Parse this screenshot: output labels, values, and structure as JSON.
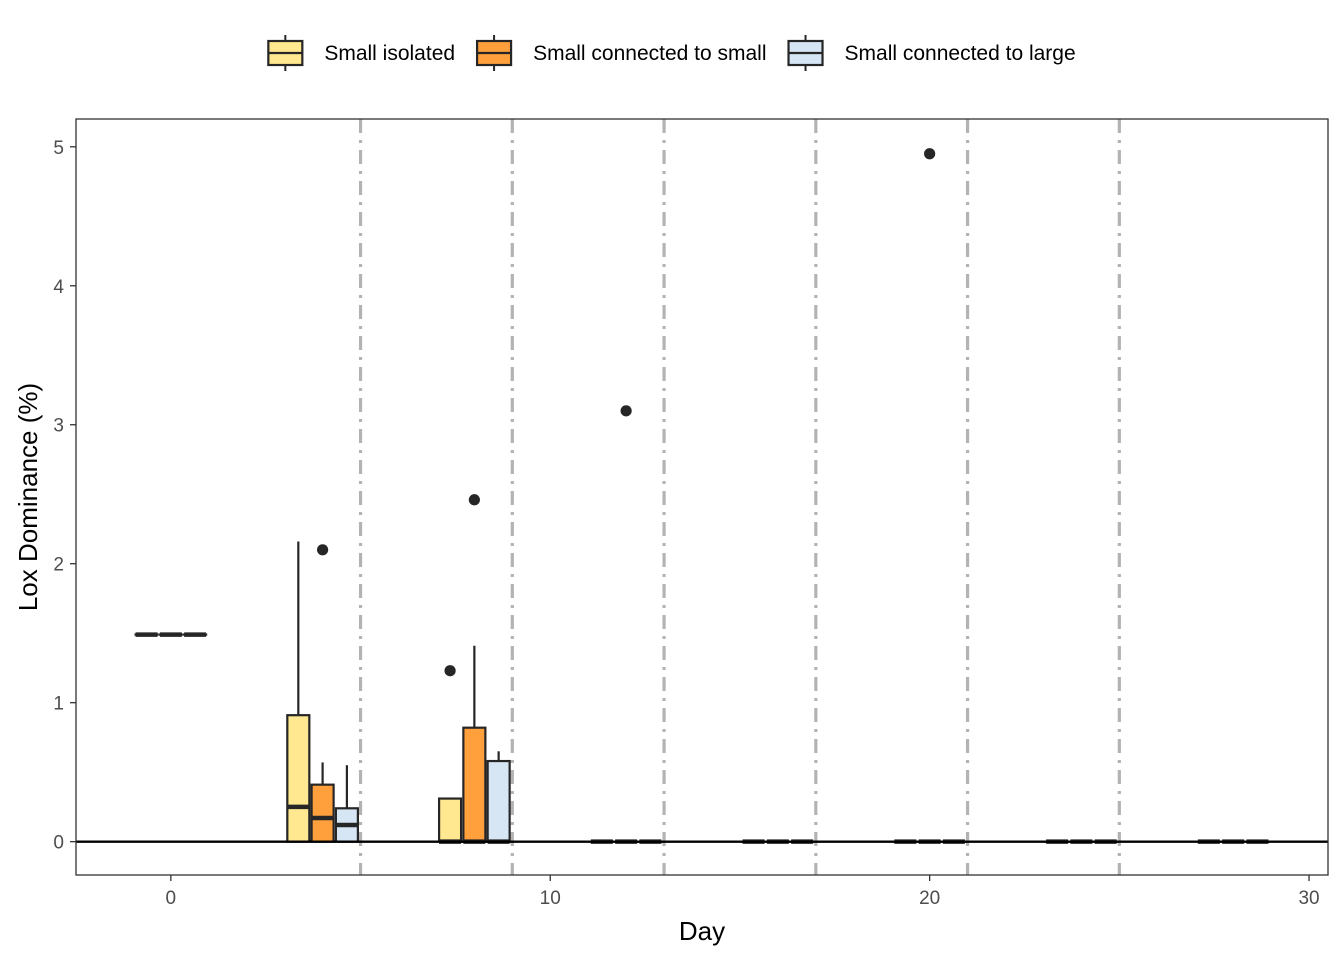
{
  "chart_data": {
    "type": "boxplot",
    "xlabel": "Day",
    "ylabel": "Lox Dominance (%)",
    "xlim": [
      -2.5,
      30.5
    ],
    "ylim": [
      -0.24,
      5.2
    ],
    "x_ticks": [
      0,
      10,
      20,
      30
    ],
    "y_ticks": [
      0,
      1,
      2,
      3,
      4,
      5
    ],
    "grid": false,
    "legend_position": "top",
    "hline_y": 0,
    "vlines_x": [
      5,
      9,
      13,
      17,
      21,
      25
    ],
    "series": [
      {
        "name": "Small isolated",
        "color": "#FFE88F",
        "boxes": [
          {
            "x": -0.64,
            "lower": 1.49,
            "q1": 1.49,
            "median": 1.49,
            "q3": 1.49,
            "upper": 1.49,
            "outliers": []
          },
          {
            "x": 3.36,
            "lower": 0,
            "q1": 0,
            "median": 0.25,
            "q3": 0.91,
            "upper": 2.16,
            "outliers": []
          },
          {
            "x": 7.36,
            "lower": 0,
            "q1": 0,
            "median": 0,
            "q3": 0.31,
            "upper": 0.31,
            "outliers": [
              1.23
            ]
          },
          {
            "x": 11.36,
            "lower": 0,
            "q1": 0,
            "median": 0,
            "q3": 0,
            "upper": 0,
            "outliers": []
          },
          {
            "x": 15.36,
            "lower": 0,
            "q1": 0,
            "median": 0,
            "q3": 0,
            "upper": 0,
            "outliers": []
          },
          {
            "x": 19.36,
            "lower": 0,
            "q1": 0,
            "median": 0,
            "q3": 0,
            "upper": 0,
            "outliers": []
          },
          {
            "x": 23.36,
            "lower": 0,
            "q1": 0,
            "median": 0,
            "q3": 0,
            "upper": 0,
            "outliers": []
          },
          {
            "x": 27.36,
            "lower": 0,
            "q1": 0,
            "median": 0,
            "q3": 0,
            "upper": 0,
            "outliers": []
          }
        ]
      },
      {
        "name": "Small connected to small",
        "color": "#FFA03C",
        "boxes": [
          {
            "x": 0,
            "lower": 1.49,
            "q1": 1.49,
            "median": 1.49,
            "q3": 1.49,
            "upper": 1.49,
            "outliers": []
          },
          {
            "x": 4,
            "lower": 0,
            "q1": 0,
            "median": 0.17,
            "q3": 0.41,
            "upper": 0.57,
            "outliers": [
              2.1
            ]
          },
          {
            "x": 8,
            "lower": 0,
            "q1": 0,
            "median": 0,
            "q3": 0.82,
            "upper": 1.41,
            "outliers": [
              2.46
            ]
          },
          {
            "x": 12,
            "lower": 0,
            "q1": 0,
            "median": 0,
            "q3": 0,
            "upper": 0,
            "outliers": [
              3.1
            ]
          },
          {
            "x": 16,
            "lower": 0,
            "q1": 0,
            "median": 0,
            "q3": 0,
            "upper": 0,
            "outliers": []
          },
          {
            "x": 20,
            "lower": 0,
            "q1": 0,
            "median": 0,
            "q3": 0,
            "upper": 0,
            "outliers": [
              4.95
            ]
          },
          {
            "x": 24,
            "lower": 0,
            "q1": 0,
            "median": 0,
            "q3": 0,
            "upper": 0,
            "outliers": []
          },
          {
            "x": 28,
            "lower": 0,
            "q1": 0,
            "median": 0,
            "q3": 0,
            "upper": 0,
            "outliers": []
          }
        ]
      },
      {
        "name": "Small connected to large",
        "color": "#D6E6F5",
        "boxes": [
          {
            "x": 0.64,
            "lower": 1.49,
            "q1": 1.49,
            "median": 1.49,
            "q3": 1.49,
            "upper": 1.49,
            "outliers": []
          },
          {
            "x": 4.64,
            "lower": 0,
            "q1": 0,
            "median": 0.12,
            "q3": 0.24,
            "upper": 0.55,
            "outliers": []
          },
          {
            "x": 8.64,
            "lower": 0,
            "q1": 0,
            "median": 0,
            "q3": 0.58,
            "upper": 0.65,
            "outliers": []
          },
          {
            "x": 12.64,
            "lower": 0,
            "q1": 0,
            "median": 0,
            "q3": 0,
            "upper": 0,
            "outliers": []
          },
          {
            "x": 16.64,
            "lower": 0,
            "q1": 0,
            "median": 0,
            "q3": 0,
            "upper": 0,
            "outliers": []
          },
          {
            "x": 20.64,
            "lower": 0,
            "q1": 0,
            "median": 0,
            "q3": 0,
            "upper": 0,
            "outliers": []
          },
          {
            "x": 24.64,
            "lower": 0,
            "q1": 0,
            "median": 0,
            "q3": 0,
            "upper": 0,
            "outliers": []
          },
          {
            "x": 28.64,
            "lower": 0,
            "q1": 0,
            "median": 0,
            "q3": 0,
            "upper": 0,
            "outliers": []
          }
        ]
      }
    ]
  }
}
